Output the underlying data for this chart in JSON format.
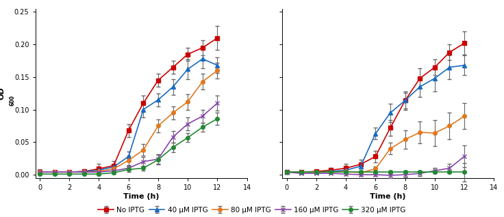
{
  "left": {
    "time": [
      0,
      1,
      2,
      3,
      4,
      5,
      6,
      7,
      8,
      9,
      10,
      11,
      12
    ],
    "no_iptg": [
      0.004,
      0.004,
      0.004,
      0.005,
      0.009,
      0.014,
      0.068,
      0.11,
      0.145,
      0.165,
      0.185,
      0.195,
      0.21
    ],
    "iptg_40": [
      0.004,
      0.004,
      0.004,
      0.005,
      0.007,
      0.012,
      0.028,
      0.1,
      0.115,
      0.135,
      0.162,
      0.178,
      0.168
    ],
    "iptg_80": [
      0.004,
      0.004,
      0.004,
      0.004,
      0.005,
      0.009,
      0.022,
      0.038,
      0.075,
      0.095,
      0.112,
      0.143,
      0.16
    ],
    "iptg_160": [
      0.004,
      0.004,
      0.004,
      0.004,
      0.004,
      0.006,
      0.01,
      0.02,
      0.024,
      0.058,
      0.078,
      0.09,
      0.11
    ],
    "iptg_320": [
      0.001,
      0.001,
      0.001,
      0.001,
      0.001,
      0.003,
      0.008,
      0.01,
      0.023,
      0.042,
      0.057,
      0.073,
      0.086
    ],
    "no_iptg_err": [
      0.004,
      0.002,
      0.002,
      0.003,
      0.008,
      0.007,
      0.01,
      0.012,
      0.01,
      0.01,
      0.01,
      0.012,
      0.018
    ],
    "iptg_40_err": [
      0.002,
      0.002,
      0.002,
      0.002,
      0.004,
      0.004,
      0.008,
      0.012,
      0.01,
      0.012,
      0.015,
      0.014,
      0.012
    ],
    "iptg_80_err": [
      0.002,
      0.002,
      0.002,
      0.002,
      0.004,
      0.004,
      0.007,
      0.009,
      0.01,
      0.01,
      0.012,
      0.012,
      0.012
    ],
    "iptg_160_err": [
      0.002,
      0.002,
      0.002,
      0.002,
      0.003,
      0.003,
      0.004,
      0.007,
      0.007,
      0.009,
      0.01,
      0.01,
      0.012
    ],
    "iptg_320_err": [
      0.001,
      0.001,
      0.001,
      0.001,
      0.002,
      0.002,
      0.004,
      0.004,
      0.007,
      0.007,
      0.007,
      0.007,
      0.009
    ]
  },
  "right": {
    "time": [
      0,
      1,
      2,
      3,
      4,
      5,
      6,
      7,
      8,
      9,
      10,
      11,
      12
    ],
    "no_iptg": [
      0.004,
      0.004,
      0.005,
      0.007,
      0.01,
      0.016,
      0.028,
      0.072,
      0.114,
      0.148,
      0.165,
      0.188,
      0.202
    ],
    "iptg_40": [
      0.004,
      0.004,
      0.004,
      0.005,
      0.007,
      0.013,
      0.063,
      0.095,
      0.114,
      0.135,
      0.148,
      0.165,
      0.168
    ],
    "iptg_80": [
      0.004,
      0.004,
      0.004,
      0.004,
      0.005,
      0.003,
      0.009,
      0.04,
      0.054,
      0.065,
      0.064,
      0.075,
      0.09
    ],
    "iptg_160": [
      0.004,
      0.002,
      0.002,
      0.002,
      0.001,
      0.0,
      0.0,
      -0.001,
      0.0,
      0.002,
      0.006,
      0.01,
      0.028
    ],
    "iptg_320": [
      0.004,
      0.004,
      0.004,
      0.004,
      0.004,
      0.004,
      0.004,
      0.004,
      0.004,
      0.004,
      0.004,
      0.004,
      0.004
    ],
    "no_iptg_err": [
      0.003,
      0.002,
      0.002,
      0.003,
      0.007,
      0.007,
      0.009,
      0.012,
      0.014,
      0.015,
      0.012,
      0.012,
      0.018
    ],
    "iptg_40_err": [
      0.002,
      0.002,
      0.002,
      0.002,
      0.004,
      0.004,
      0.009,
      0.014,
      0.012,
      0.015,
      0.02,
      0.018,
      0.015
    ],
    "iptg_80_err": [
      0.002,
      0.002,
      0.002,
      0.002,
      0.003,
      0.003,
      0.004,
      0.009,
      0.014,
      0.017,
      0.02,
      0.02,
      0.02
    ],
    "iptg_160_err": [
      0.002,
      0.001,
      0.001,
      0.001,
      0.002,
      0.002,
      0.002,
      0.004,
      0.004,
      0.004,
      0.004,
      0.007,
      0.017
    ],
    "iptg_320_err": [
      0.002,
      0.001,
      0.001,
      0.001,
      0.002,
      0.002,
      0.002,
      0.002,
      0.002,
      0.002,
      0.002,
      0.002,
      0.014
    ]
  },
  "series": [
    {
      "key": "no_iptg",
      "label": "No IPTG",
      "color": "#cc0000",
      "marker": "s",
      "ms": 4,
      "mfc": "#cc0000"
    },
    {
      "key": "iptg_40",
      "label": "40 μM IPTG",
      "color": "#1a6abf",
      "marker": "^",
      "ms": 4,
      "mfc": "#1a6abf"
    },
    {
      "key": "iptg_80",
      "label": "80 μM IPTG",
      "color": "#e07820",
      "marker": "o",
      "ms": 4,
      "mfc": "#e07820"
    },
    {
      "key": "iptg_160",
      "label": "160 μM IPTG",
      "color": "#8844aa",
      "marker": "x",
      "ms": 5,
      "mfc": "none"
    },
    {
      "key": "iptg_320",
      "label": "320 μM IPTG",
      "color": "#228833",
      "marker": "o",
      "ms": 4,
      "mfc": "#228833"
    }
  ],
  "ylim": [
    -0.005,
    0.255
  ],
  "xlim": [
    -0.3,
    14
  ],
  "xticks": [
    0,
    2,
    4,
    6,
    8,
    10,
    12,
    14
  ],
  "yticks": [
    0.0,
    0.05,
    0.1,
    0.15,
    0.2,
    0.25
  ],
  "xlabel": "Time (h)",
  "ylabel_main": "OD",
  "ylabel_sub": "600",
  "lw": 1.2,
  "capsize": 2,
  "elinewidth": 0.8,
  "tick_fontsize": 7,
  "label_fontsize": 8,
  "legend_fontsize": 7.5
}
